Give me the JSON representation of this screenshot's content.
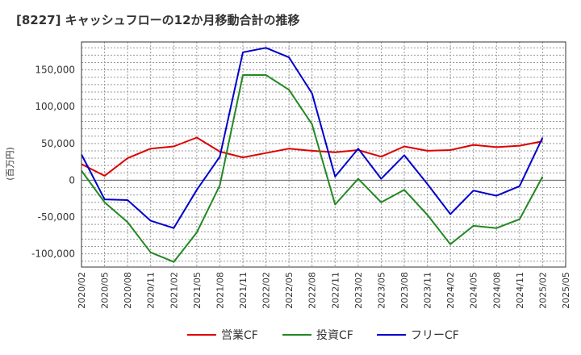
{
  "chart_data": {
    "type": "line",
    "title": "[8227]  キャッシュフローの12か月移動合計の推移",
    "xlabel": "",
    "ylabel": "(百万円)",
    "ylim": [
      -118000,
      188000
    ],
    "yticks": [
      -100000,
      -50000,
      0,
      50000,
      100000,
      150000
    ],
    "ytick_labels": [
      "-100,000",
      "-50,000",
      "0",
      "50,000",
      "100,000",
      "150,000"
    ],
    "x": [
      "2020/02",
      "2020/05",
      "2020/08",
      "2020/11",
      "2021/02",
      "2021/05",
      "2021/08",
      "2021/11",
      "2022/02",
      "2022/05",
      "2022/08",
      "2022/11",
      "2023/02",
      "2023/05",
      "2023/08",
      "2023/11",
      "2024/02",
      "2024/05",
      "2024/08",
      "2024/11",
      "2025/02",
      "2025/05"
    ],
    "grid": true,
    "legend_position": "bottom",
    "series": [
      {
        "name": "営業CF",
        "color": "#dd0000",
        "values": [
          22000,
          6000,
          30000,
          43000,
          46000,
          58000,
          39000,
          31000,
          37000,
          43000,
          40000,
          38000,
          41000,
          32000,
          46000,
          40000,
          41000,
          48000,
          45000,
          47000,
          53000,
          null
        ]
      },
      {
        "name": "投資CF",
        "color": "#228822",
        "values": [
          13000,
          -30000,
          -57000,
          -98000,
          -111000,
          -71000,
          -7000,
          143000,
          143000,
          123000,
          76000,
          -33000,
          2000,
          -30000,
          -13000,
          -47000,
          -87000,
          -62000,
          -65000,
          -53000,
          5000,
          null
        ]
      },
      {
        "name": "フリーCF",
        "color": "#0000cc",
        "values": [
          35000,
          -26000,
          -27000,
          -55000,
          -65000,
          -13000,
          32000,
          174000,
          180000,
          167000,
          118000,
          5000,
          43000,
          2000,
          34000,
          -5000,
          -46000,
          -14000,
          -21000,
          -8000,
          58000,
          null
        ]
      }
    ]
  }
}
